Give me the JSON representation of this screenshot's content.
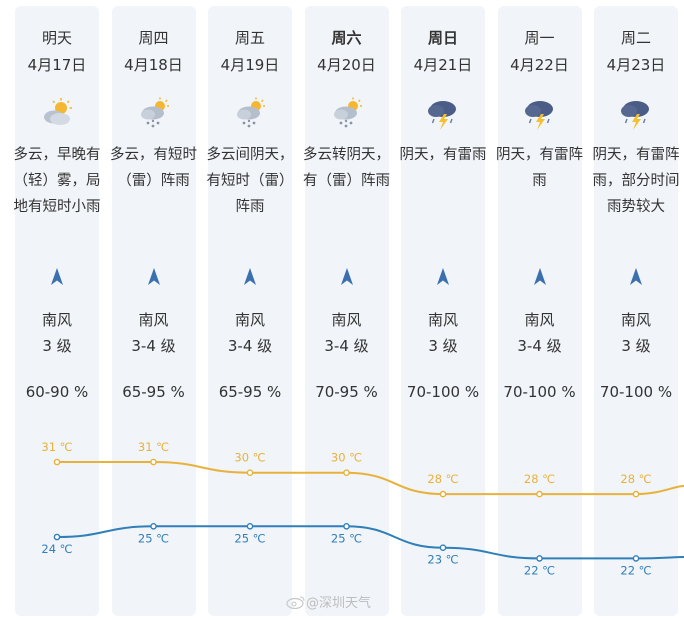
{
  "days": [
    {
      "name": "明天",
      "bold": false,
      "date": "4月17日",
      "icon": "cloudy-sun-icon",
      "desc": "多云，早晚有（轻）雾，局地有短时小雨",
      "wind": "南风",
      "level": "3 级",
      "humidity": "60-90 %",
      "high": "31 ℃",
      "low": "24 ℃"
    },
    {
      "name": "周四",
      "bold": false,
      "date": "4月18日",
      "icon": "sun-cloud-rain-icon",
      "desc": "多云，有短时（雷）阵雨",
      "wind": "南风",
      "level": "3-4 级",
      "humidity": "65-95 %",
      "high": "31 ℃",
      "low": "25 ℃"
    },
    {
      "name": "周五",
      "bold": false,
      "date": "4月19日",
      "icon": "sun-cloud-rain-icon",
      "desc": "多云间阴天，有短时（雷）阵雨",
      "wind": "南风",
      "level": "3-4 级",
      "humidity": "65-95 %",
      "high": "30 ℃",
      "low": "25 ℃"
    },
    {
      "name": "周六",
      "bold": true,
      "date": "4月20日",
      "icon": "sun-cloud-rain-icon",
      "desc": "多云转阴天，有（雷）阵雨",
      "wind": "南风",
      "level": "3-4 级",
      "humidity": "70-95 %",
      "high": "30 ℃",
      "low": "25 ℃"
    },
    {
      "name": "周日",
      "bold": true,
      "date": "4月21日",
      "icon": "thunderstorm-icon",
      "desc": "阴天，有雷雨",
      "wind": "南风",
      "level": "3 级",
      "humidity": "70-100 %",
      "high": "28 ℃",
      "low": "23 ℃"
    },
    {
      "name": "周一",
      "bold": false,
      "date": "4月22日",
      "icon": "thunderstorm-icon",
      "desc": "阴天，有雷阵雨",
      "wind": "南风",
      "level": "3-4 级",
      "humidity": "70-100 %",
      "high": "28 ℃",
      "low": "22 ℃"
    },
    {
      "name": "周二",
      "bold": false,
      "date": "4月23日",
      "icon": "thunderstorm-icon",
      "desc": "阴天，有雷阵雨，部分时间雨势较大",
      "wind": "南风",
      "level": "3 级",
      "humidity": "70-100 %",
      "high": "28 ℃",
      "low": "22 ℃"
    }
  ],
  "chart_data": {
    "type": "line",
    "x": [
      "4月17日",
      "4月18日",
      "4月19日",
      "4月20日",
      "4月21日",
      "4月22日",
      "4月23日"
    ],
    "series": [
      {
        "values": [
          31,
          31,
          30,
          30,
          28,
          28,
          28
        ],
        "color": "#e8b23a"
      },
      {
        "values": [
          24,
          25,
          25,
          25,
          23,
          22,
          22
        ],
        "color": "#2f7fb9"
      }
    ]
  },
  "watermark": {
    "text": "@深圳天气"
  }
}
